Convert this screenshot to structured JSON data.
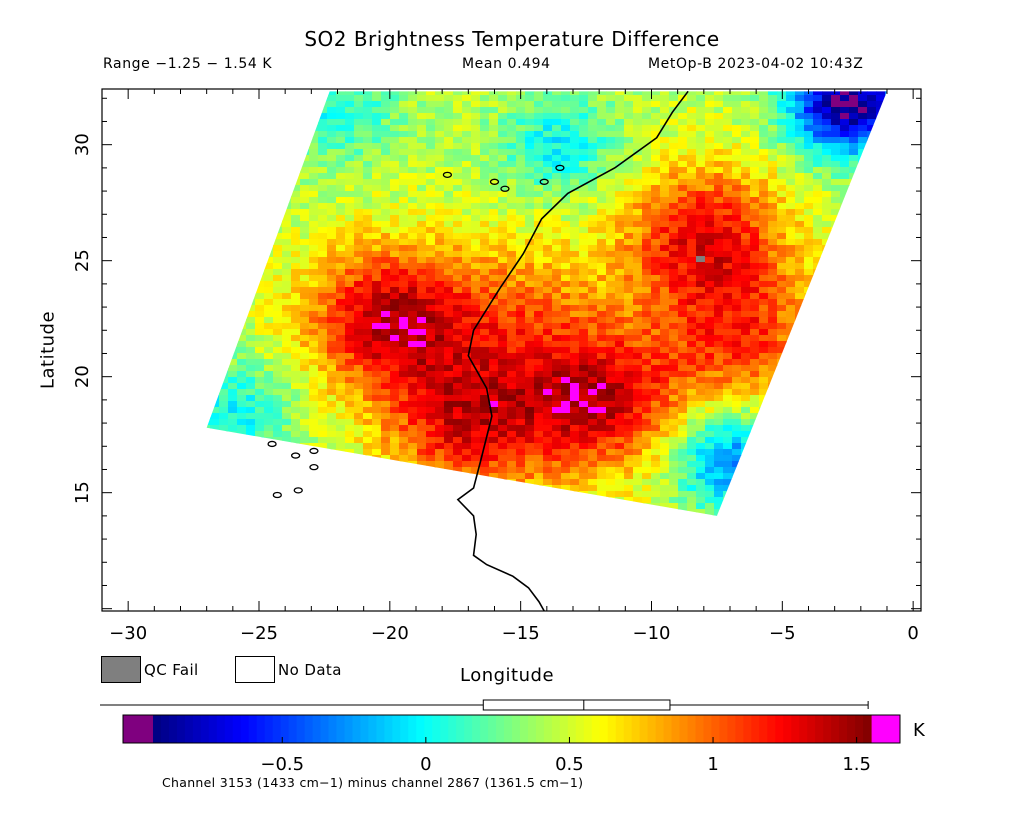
{
  "header": {
    "title": "SO2 Brightness Temperature Difference",
    "range_text": "Range −1.25 − 1.54 K",
    "mean_text": "Mean 0.494",
    "satellite_time": "MetOp-B 2023-04-02 10:43Z"
  },
  "colors": {
    "qc_fail": "#7f7f7f",
    "no_data": "#ffffff",
    "under_range": "#7f007f",
    "over_range": "#ff00ff",
    "coastline": "#000000"
  },
  "legend": {
    "qc_fail_label": "QC Fail",
    "no_data_label": "No Data"
  },
  "chart_data": {
    "type": "heatmap",
    "title": "SO2 Brightness Temperature Difference",
    "xlabel": "Longitude",
    "ylabel": "Latitude",
    "xlim": [
      -31,
      0.3
    ],
    "ylim": [
      9.9,
      32.4
    ],
    "x_ticks": [
      -30,
      -25,
      -20,
      -15,
      -10,
      -5,
      0
    ],
    "y_ticks": [
      15,
      20,
      25,
      30
    ],
    "value_units": "K",
    "value_range": [
      -1.25,
      1.54
    ],
    "mean": 0.494,
    "swath_corners_lonlat": {
      "top_left": [
        -22.3,
        32.3
      ],
      "top_right": [
        -1.0,
        32.3
      ],
      "bottom_right": [
        -7.5,
        14.0
      ],
      "bottom_left": [
        -27.0,
        17.8
      ]
    },
    "hotspots": [
      {
        "lon": -20.0,
        "lat": 22.5,
        "value": 1.4
      },
      {
        "lon": -17.0,
        "lat": 18.0,
        "value": 1.25
      },
      {
        "lon": -12.0,
        "lat": 19.0,
        "value": 1.35
      },
      {
        "lon": -8.0,
        "lat": 26.0,
        "value": 1.25
      },
      {
        "lon": -6.5,
        "lat": 21.5,
        "value": 1.05
      },
      {
        "lon": -15.0,
        "lat": 23.0,
        "value": 0.85
      }
    ],
    "coldspots": [
      {
        "lon": -13.5,
        "lat": 30.0,
        "value": 0.0
      },
      {
        "lon": -2.5,
        "lat": 31.8,
        "value": -1.0
      },
      {
        "lon": -7.0,
        "lat": 16.5,
        "value": -0.35
      },
      {
        "lon": -26.0,
        "lat": 18.5,
        "value": 0.0
      },
      {
        "lon": -22.0,
        "lat": 31.5,
        "value": 0.05
      }
    ],
    "colorbar": {
      "vmin": -0.95,
      "vmax": 1.55,
      "ticks": [
        -0.5,
        0,
        0.5,
        1,
        1.5
      ],
      "tick_labels": [
        "−0.5",
        "0",
        "0.5",
        "1",
        "1.5"
      ],
      "unit": "K",
      "boxplot": {
        "whisker_low": -1.25,
        "q1": 0.2,
        "median": 0.55,
        "q3": 0.85,
        "whisker_high": 1.54
      }
    },
    "caption": "Channel 3153 (1433 cm−1) minus channel 2867 (1361.5 cm−1)"
  }
}
